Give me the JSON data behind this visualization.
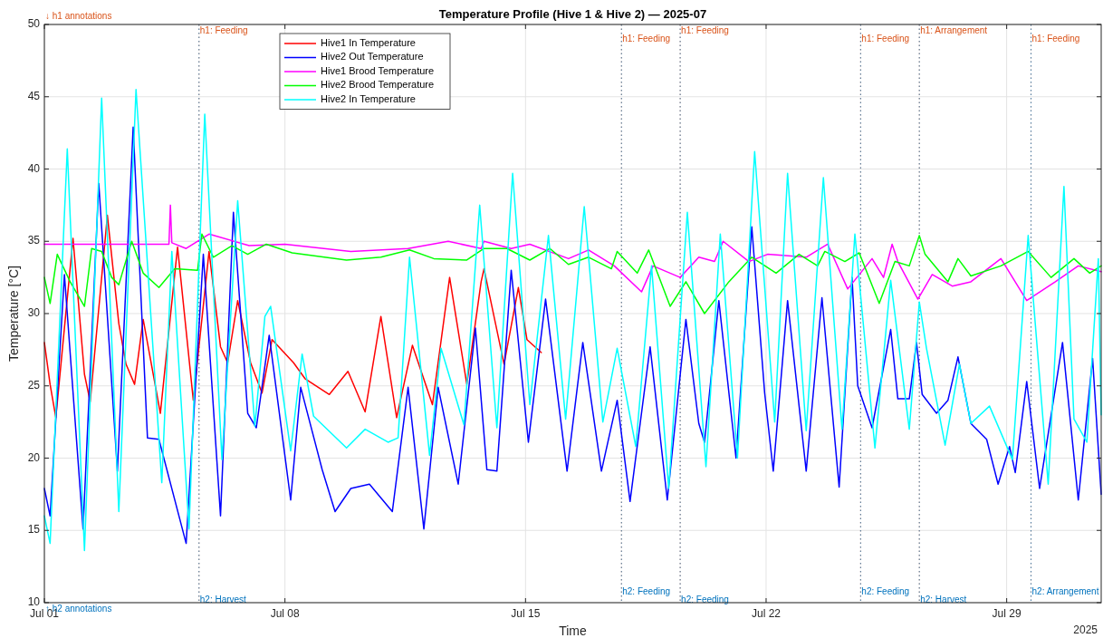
{
  "chart_data": {
    "type": "line",
    "title": "Temperature Profile (Hive 1 & Hive 2) — 2025-07",
    "xlabel": "Time",
    "ylabel": "Temperature [°C]",
    "annotations": [
      "↓ h1 annotations",
      "↑ h2 annotations",
      "2025"
    ],
    "xlim": [
      "2025-07-01",
      "2025-07-31T18:00"
    ],
    "xticks": [
      {
        "value": "2025-07-01",
        "label": "Jul 01"
      },
      {
        "value": "2025-07-08",
        "label": "Jul 08"
      },
      {
        "value": "2025-07-15",
        "label": "Jul 15"
      },
      {
        "value": "2025-07-22",
        "label": "Jul 22"
      },
      {
        "value": "2025-07-29",
        "label": "Jul 29"
      }
    ],
    "ylim": [
      10,
      50
    ],
    "yticks": [
      10,
      15,
      20,
      25,
      30,
      35,
      40,
      45,
      50
    ],
    "grid": true,
    "legend": "top left",
    "line_style": "solid",
    "ref_lines": [
      {
        "axis": "x",
        "value": "2025-07-05T12:00",
        "label": "h1: Feeding",
        "color": "#d95319",
        "line_style": "dotted"
      },
      {
        "axis": "x",
        "value": "2025-07-17T19:00",
        "label": "h1: Feeding",
        "color": "#d95319",
        "line_style": "dotted"
      },
      {
        "axis": "x",
        "value": "2025-07-19T12:00",
        "label": "h1: Feeding",
        "color": "#d95319",
        "line_style": "dotted"
      },
      {
        "axis": "x",
        "value": "2025-07-24T18:00",
        "label": "h1: Feeding",
        "color": "#d95319",
        "line_style": "dotted"
      },
      {
        "axis": "x",
        "value": "2025-07-26T11:00",
        "label": "h1: Arrangement",
        "color": "#d95319",
        "line_style": "dotted"
      },
      {
        "axis": "x",
        "value": "2025-07-29T17:00",
        "label": "h1: Feeding",
        "color": "#d95319",
        "line_style": "dotted"
      },
      {
        "axis": "x",
        "value": "2025-07-05T12:00",
        "label": "h2: Harvest",
        "color": "#0072bd",
        "line_style": "dotted"
      },
      {
        "axis": "x",
        "value": "2025-07-17T19:00",
        "label": "h2: Feeding",
        "color": "#0072bd",
        "line_style": "dotted"
      },
      {
        "axis": "x",
        "value": "2025-07-19T12:00",
        "label": "h2: Feeding",
        "color": "#0072bd",
        "line_style": "dotted"
      },
      {
        "axis": "x",
        "value": "2025-07-24T18:00",
        "label": "h2: Feeding",
        "color": "#0072bd",
        "line_style": "dotted"
      },
      {
        "axis": "x",
        "value": "2025-07-26T11:00",
        "label": "h2: Harvest",
        "color": "#0072bd",
        "line_style": "dotted"
      },
      {
        "axis": "x",
        "value": "2025-07-29T17:00",
        "label": "h2: Arrangement",
        "color": "#0072bd",
        "line_style": "dotted"
      }
    ],
    "series": [
      {
        "name": "Hive1 In Temperature",
        "color": "#ff0000",
        "x": [
          "2025-07-01T00:00",
          "2025-07-01T04:00",
          "2025-07-01T08:00",
          "2025-07-01T20:00",
          "2025-07-02T04:00",
          "2025-07-02T08:00",
          "2025-07-02T20:00",
          "2025-07-03T04:00",
          "2025-07-03T09:00",
          "2025-07-03T15:00",
          "2025-07-03T21:00",
          "2025-07-04T09:00",
          "2025-07-04T21:00",
          "2025-07-05T08:00",
          "2025-07-05T19:00",
          "2025-07-06T03:00",
          "2025-07-06T08:00",
          "2025-07-06T15:00",
          "2025-07-07T00:00",
          "2025-07-07T08:00",
          "2025-07-07T15:00",
          "2025-07-08T06:00",
          "2025-07-08T14:00",
          "2025-07-09T07:00",
          "2025-07-09T20:00",
          "2025-07-10T08:00",
          "2025-07-10T19:00",
          "2025-07-11T06:00",
          "2025-07-11T17:00",
          "2025-07-12T07:00",
          "2025-07-12T19:00",
          "2025-07-13T07:00",
          "2025-07-13T17:00",
          "2025-07-13T19:00",
          "2025-07-14T09:00",
          "2025-07-14T19:00",
          "2025-07-15T01:00",
          "2025-07-15T11:00"
        ],
        "values": [
          28.0,
          25.1,
          22.8,
          35.2,
          25.8,
          23.9,
          36.8,
          29.3,
          26.5,
          25.1,
          29.6,
          23.1,
          34.6,
          24.0,
          34.3,
          27.7,
          26.6,
          30.9,
          26.6,
          24.5,
          28.2,
          26.6,
          25.5,
          24.4,
          26.0,
          23.2,
          29.8,
          22.8,
          27.8,
          23.7,
          32.5,
          25.1,
          32.2,
          33.1,
          26.5,
          31.8,
          28.2,
          27.3
        ]
      },
      {
        "name": "Hive2 Out Temperature",
        "color": "#0000ff",
        "x": [
          "2025-07-01T00:00",
          "2025-07-01T04:00",
          "2025-07-01T14:00",
          "2025-07-02T03:00",
          "2025-07-02T14:00",
          "2025-07-03T03:00",
          "2025-07-03T14:00",
          "2025-07-04T00:00",
          "2025-07-04T08:00",
          "2025-07-05T03:00",
          "2025-07-05T15:00",
          "2025-07-06T03:00",
          "2025-07-06T12:00",
          "2025-07-06T22:00",
          "2025-07-07T04:00",
          "2025-07-07T13:00",
          "2025-07-08T04:00",
          "2025-07-08T11:00",
          "2025-07-09T02:00",
          "2025-07-09T11:00",
          "2025-07-09T22:00",
          "2025-07-10T11:00",
          "2025-07-11T03:00",
          "2025-07-11T14:00",
          "2025-07-12T01:00",
          "2025-07-12T11:00",
          "2025-07-13T01:00",
          "2025-07-13T13:00",
          "2025-07-13T21:00",
          "2025-07-14T04:00",
          "2025-07-14T14:00",
          "2025-07-15T02:00",
          "2025-07-15T14:00",
          "2025-07-16T05:00",
          "2025-07-16T16:00",
          "2025-07-17T05:00",
          "2025-07-17T16:00",
          "2025-07-18T01:00",
          "2025-07-18T15:00",
          "2025-07-19T03:00",
          "2025-07-19T16:00",
          "2025-07-20T01:00",
          "2025-07-20T05:00",
          "2025-07-20T15:00",
          "2025-07-21T03:00",
          "2025-07-21T14:00",
          "2025-07-21T23:00",
          "2025-07-22T05:00",
          "2025-07-22T15:00",
          "2025-07-23T04:00",
          "2025-07-23T15:00",
          "2025-07-24T03:00",
          "2025-07-24T12:00",
          "2025-07-24T16:00",
          "2025-07-25T02:00",
          "2025-07-25T15:00",
          "2025-07-25T20:00",
          "2025-07-26T04:00",
          "2025-07-26T09:00",
          "2025-07-26T13:00",
          "2025-07-26T23:00",
          "2025-07-27T07:00",
          "2025-07-27T14:00",
          "2025-07-27T23:00",
          "2025-07-28T10:00",
          "2025-07-28T18:00",
          "2025-07-29T02:00",
          "2025-07-29T06:00",
          "2025-07-29T14:00",
          "2025-07-29T23:00",
          "2025-07-30T15:00",
          "2025-07-31T02:00",
          "2025-07-31T12:00",
          "2025-07-31T18:00"
        ],
        "values": [
          17.9,
          16.0,
          32.7,
          15.1,
          39.0,
          19.1,
          42.9,
          21.4,
          21.3,
          14.1,
          34.1,
          16.0,
          37.0,
          23.1,
          22.1,
          28.5,
          17.1,
          24.9,
          19.2,
          16.3,
          17.9,
          18.2,
          16.3,
          24.9,
          15.1,
          24.9,
          18.2,
          29.0,
          19.2,
          19.1,
          33.0,
          21.1,
          31.0,
          19.1,
          28.0,
          19.1,
          24.0,
          17.0,
          27.7,
          17.1,
          29.6,
          22.4,
          21.1,
          30.9,
          20.0,
          36.0,
          24.5,
          19.1,
          30.9,
          19.1,
          31.1,
          18.0,
          32.5,
          25.0,
          22.1,
          28.9,
          24.1,
          24.1,
          28.0,
          24.4,
          23.1,
          24.0,
          27.0,
          22.4,
          21.3,
          18.2,
          20.8,
          19.0,
          25.3,
          17.9,
          28.0,
          17.1,
          26.9,
          17.5
        ]
      },
      {
        "name": "Hive1 Brood Temperature",
        "color": "#ff00ff",
        "x": [
          "2025-07-01T00:00",
          "2025-07-02T08:00",
          "2025-07-04T15:00",
          "2025-07-04T16:00",
          "2025-07-04T17:00",
          "2025-07-05T03:00",
          "2025-07-05T19:00",
          "2025-07-06T23:00",
          "2025-07-08T00:00",
          "2025-07-09T22:00",
          "2025-07-11T14:00",
          "2025-07-12T18:00",
          "2025-07-13T17:00",
          "2025-07-13T19:00",
          "2025-07-14T14:00",
          "2025-07-15T03:00",
          "2025-07-16T06:00",
          "2025-07-16T20:00",
          "2025-07-17T14:00",
          "2025-07-18T09:00",
          "2025-07-18T17:00",
          "2025-07-19T12:00",
          "2025-07-20T01:00",
          "2025-07-20T12:00",
          "2025-07-20T18:00",
          "2025-07-21T12:00",
          "2025-07-22T01:00",
          "2025-07-23T04:00",
          "2025-07-23T19:00",
          "2025-07-24T09:00",
          "2025-07-25T02:00",
          "2025-07-25T10:00",
          "2025-07-25T16:00",
          "2025-07-25T20:00",
          "2025-07-26T10:00",
          "2025-07-26T20:00",
          "2025-07-27T10:00",
          "2025-07-27T23:00",
          "2025-07-28T20:00",
          "2025-07-29T14:00",
          "2025-07-30T10:00",
          "2025-07-31T02:00",
          "2025-07-31T18:00"
        ],
        "values": [
          34.8,
          34.8,
          34.8,
          37.5,
          34.9,
          34.5,
          35.5,
          34.7,
          34.8,
          34.3,
          34.5,
          35.0,
          34.5,
          35.0,
          34.5,
          34.8,
          33.8,
          34.4,
          33.3,
          31.5,
          33.3,
          32.5,
          33.9,
          33.6,
          35.0,
          33.6,
          34.1,
          33.9,
          34.8,
          31.7,
          33.8,
          32.5,
          34.8,
          33.6,
          31.0,
          32.7,
          31.9,
          32.2,
          33.8,
          30.9,
          32.2,
          33.3,
          32.9
        ]
      },
      {
        "name": "Hive2 Brood Temperature",
        "color": "#00ff00",
        "x": [
          "2025-07-01T00:00",
          "2025-07-01T04:00",
          "2025-07-01T09:00",
          "2025-07-01T18:00",
          "2025-07-02T04:00",
          "2025-07-02T09:00",
          "2025-07-02T16:00",
          "2025-07-02T23:00",
          "2025-07-03T04:00",
          "2025-07-03T13:00",
          "2025-07-03T21:00",
          "2025-07-04T08:00",
          "2025-07-04T19:00",
          "2025-07-05T11:00",
          "2025-07-05T14:00",
          "2025-07-05T22:00",
          "2025-07-06T11:00",
          "2025-07-06T22:00",
          "2025-07-07T11:00",
          "2025-07-08T05:00",
          "2025-07-09T19:00",
          "2025-07-10T19:00",
          "2025-07-11T15:00",
          "2025-07-12T08:00",
          "2025-07-13T07:00",
          "2025-07-13T19:00",
          "2025-07-14T11:00",
          "2025-07-15T03:00",
          "2025-07-15T17:00",
          "2025-07-16T06:00",
          "2025-07-16T20:00",
          "2025-07-17T12:00",
          "2025-07-17T16:00",
          "2025-07-18T06:00",
          "2025-07-18T14:00",
          "2025-07-19T05:00",
          "2025-07-19T16:00",
          "2025-07-20T05:00",
          "2025-07-20T22:00",
          "2025-07-21T14:00",
          "2025-07-22T07:00",
          "2025-07-22T23:00",
          "2025-07-23T12:00",
          "2025-07-23T17:00",
          "2025-07-24T07:00",
          "2025-07-24T17:00",
          "2025-07-25T07:00",
          "2025-07-25T18:00",
          "2025-07-26T04:00",
          "2025-07-26T11:00",
          "2025-07-26T15:00",
          "2025-07-27T07:00",
          "2025-07-27T14:00",
          "2025-07-27T23:00",
          "2025-07-28T20:00",
          "2025-07-29T15:00",
          "2025-07-30T07:00",
          "2025-07-30T23:00",
          "2025-07-31T10:00",
          "2025-07-31T18:00"
        ],
        "values": [
          32.5,
          30.7,
          34.1,
          32.2,
          30.5,
          34.5,
          34.3,
          32.5,
          32.0,
          35.0,
          32.8,
          31.8,
          33.1,
          33.0,
          35.5,
          33.9,
          34.7,
          34.1,
          34.8,
          34.2,
          33.7,
          33.9,
          34.4,
          33.8,
          33.7,
          34.5,
          34.5,
          33.7,
          34.5,
          33.4,
          33.9,
          33.1,
          34.3,
          32.8,
          34.4,
          30.5,
          32.2,
          30.0,
          32.2,
          33.9,
          32.8,
          34.1,
          33.3,
          34.3,
          33.6,
          34.2,
          30.7,
          33.6,
          33.3,
          35.4,
          34.1,
          32.2,
          33.8,
          32.6,
          33.3,
          34.3,
          32.5,
          33.8,
          32.8,
          33.3
        ]
      },
      {
        "name": "Hive2 In Temperature",
        "color": "#00ffff",
        "x": [
          "2025-07-01T00:00",
          "2025-07-01T04:00",
          "2025-07-01T16:00",
          "2025-07-02T04:00",
          "2025-07-02T16:00",
          "2025-07-03T04:00",
          "2025-07-03T16:00",
          "2025-07-04T10:00",
          "2025-07-04T17:00",
          "2025-07-05T05:00",
          "2025-07-05T16:00",
          "2025-07-06T04:00",
          "2025-07-06T15:00",
          "2025-07-07T03:00",
          "2025-07-07T10:00",
          "2025-07-07T14:00",
          "2025-07-08T04:00",
          "2025-07-08T12:00",
          "2025-07-08T20:00",
          "2025-07-09T19:00",
          "2025-07-10T08:00",
          "2025-07-11T00:00",
          "2025-07-11T07:00",
          "2025-07-11T15:00",
          "2025-07-12T05:00",
          "2025-07-12T13:00",
          "2025-07-13T05:00",
          "2025-07-13T16:00",
          "2025-07-14T04:00",
          "2025-07-14T15:00",
          "2025-07-15T03:00",
          "2025-07-15T16:00",
          "2025-07-16T04:00",
          "2025-07-16T17:00",
          "2025-07-17T06:00",
          "2025-07-17T16:00",
          "2025-07-18T05:00",
          "2025-07-18T16:00",
          "2025-07-19T04:00",
          "2025-07-19T17:00",
          "2025-07-20T06:00",
          "2025-07-20T16:00",
          "2025-07-21T04:00",
          "2025-07-21T16:00",
          "2025-07-22T06:00",
          "2025-07-22T15:00",
          "2025-07-23T04:00",
          "2025-07-23T16:00",
          "2025-07-24T05:00",
          "2025-07-24T14:00",
          "2025-07-25T04:00",
          "2025-07-25T15:00",
          "2025-07-26T04:00",
          "2025-07-26T11:00",
          "2025-07-26T16:00",
          "2025-07-27T05:00",
          "2025-07-27T15:00",
          "2025-07-27T23:00",
          "2025-07-28T12:00",
          "2025-07-29T04:00",
          "2025-07-29T15:00",
          "2025-07-30T05:00",
          "2025-07-30T16:00",
          "2025-07-30T23:00",
          "2025-07-31T08:00",
          "2025-07-31T16:00",
          "2025-07-31T18:00"
        ],
        "values": [
          16.0,
          14.1,
          41.4,
          13.6,
          44.9,
          16.3,
          45.5,
          18.3,
          34.3,
          15.1,
          43.8,
          19.9,
          37.8,
          22.2,
          29.8,
          30.5,
          20.5,
          27.2,
          22.9,
          20.7,
          22.0,
          21.1,
          21.4,
          33.9,
          20.2,
          27.6,
          22.3,
          37.5,
          22.1,
          39.7,
          23.7,
          35.4,
          22.7,
          37.4,
          22.5,
          27.6,
          20.8,
          33.3,
          17.9,
          37.0,
          19.4,
          35.5,
          20.0,
          41.2,
          22.5,
          39.7,
          21.9,
          39.4,
          22.0,
          35.5,
          20.7,
          32.3,
          22.0,
          30.8,
          27.6,
          20.9,
          26.5,
          22.4,
          23.6,
          19.9,
          35.4,
          18.2,
          38.8,
          22.7,
          21.1,
          33.8,
          23.0
        ]
      }
    ]
  }
}
